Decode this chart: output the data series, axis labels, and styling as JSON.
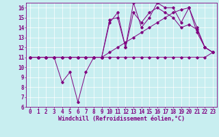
{
  "bg_color": "#c8eef0",
  "line_color": "#800080",
  "grid_color": "#ffffff",
  "xlabel": "Windchill (Refroidissement éolien,°C)",
  "xlabel_fontsize": 6.0,
  "tick_fontsize": 5.5,
  "ylim": [
    6,
    16.5
  ],
  "xlim": [
    -0.5,
    23.5
  ],
  "yticks": [
    6,
    7,
    8,
    9,
    10,
    11,
    12,
    13,
    14,
    15,
    16
  ],
  "xticks": [
    0,
    1,
    2,
    3,
    4,
    5,
    6,
    7,
    8,
    9,
    10,
    11,
    12,
    13,
    14,
    15,
    16,
    17,
    18,
    19,
    20,
    21,
    22,
    23
  ],
  "series": [
    {
      "x": [
        0,
        1,
        2,
        3,
        4,
        5,
        6,
        7,
        8,
        9,
        10,
        11,
        12,
        13,
        14,
        15,
        16,
        17,
        18,
        19,
        20,
        21,
        22,
        23
      ],
      "y": [
        11,
        11,
        11,
        11,
        8.5,
        9.5,
        6.5,
        9.5,
        11,
        11,
        11,
        11,
        11,
        11,
        11,
        11,
        11,
        11,
        11,
        11,
        11,
        11,
        11,
        11.5
      ]
    },
    {
      "x": [
        0,
        1,
        2,
        3,
        4,
        5,
        6,
        7,
        8,
        9,
        10,
        11,
        12,
        13,
        14,
        15,
        16,
        17,
        18,
        19,
        20,
        21,
        22,
        23
      ],
      "y": [
        11,
        11,
        11,
        11,
        11,
        11,
        11,
        11,
        11,
        11,
        11.5,
        12,
        12.5,
        13,
        13.5,
        14,
        14.5,
        15,
        15.5,
        15.8,
        16,
        14,
        12,
        11.5
      ]
    },
    {
      "x": [
        0,
        1,
        2,
        3,
        4,
        5,
        6,
        7,
        8,
        9,
        10,
        11,
        12,
        13,
        14,
        15,
        16,
        17,
        18,
        19,
        20,
        21,
        22,
        23
      ],
      "y": [
        11,
        11,
        11,
        11,
        11,
        11,
        11,
        11,
        11,
        11,
        14.5,
        15.5,
        12,
        16.5,
        14,
        15,
        16.5,
        16,
        16,
        14.5,
        16,
        13.5,
        12,
        11.5
      ]
    },
    {
      "x": [
        0,
        1,
        2,
        3,
        4,
        5,
        6,
        7,
        8,
        9,
        10,
        11,
        12,
        13,
        14,
        15,
        16,
        17,
        18,
        19,
        20,
        21,
        22,
        23
      ],
      "y": [
        11,
        11,
        11,
        11,
        11,
        11,
        11,
        11,
        11,
        11,
        14.8,
        15,
        12,
        15.5,
        14.5,
        15.5,
        16,
        15.5,
        15,
        14,
        14.3,
        13.8,
        12,
        11.5
      ]
    }
  ]
}
